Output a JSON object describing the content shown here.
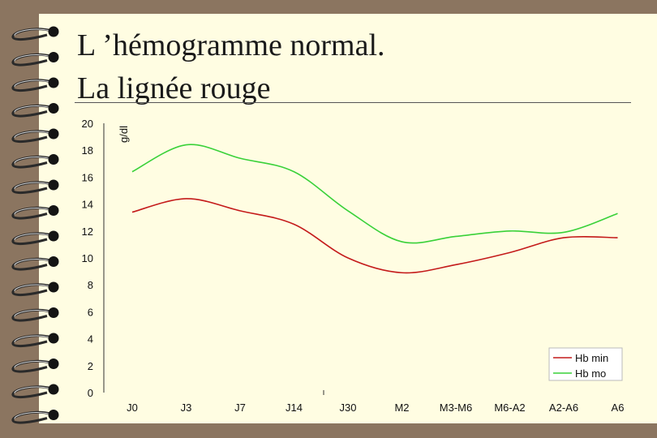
{
  "slide": {
    "title_line1": "L ’hémogramme normal.",
    "title_line2": "La lignée rouge"
  },
  "colors": {
    "background": "#8b7560",
    "slide": "#fffde2",
    "hb_min": "#c41a1a",
    "hb_mo": "#39d139"
  },
  "chart_data": {
    "type": "line",
    "ylabel": "g/dl",
    "xlabel": "",
    "ylim": [
      0,
      20
    ],
    "yticks": [
      "0",
      "2",
      "4",
      "6",
      "8",
      "10",
      "12",
      "14",
      "16",
      "18",
      "20"
    ],
    "categories": [
      "J0",
      "J3",
      "J7",
      "J14",
      "J30",
      "M2",
      "M3-M6",
      "M6-A2",
      "A2-A6",
      "A6"
    ],
    "grid": false,
    "legend_position": "bottom-right",
    "series": [
      {
        "name": "Hb min",
        "color": "#c41a1a",
        "values": [
          13.4,
          14.4,
          13.5,
          12.5,
          10.0,
          8.9,
          9.5,
          10.4,
          11.5,
          11.5
        ]
      },
      {
        "name": "Hb mo",
        "color": "#39d139",
        "values": [
          16.4,
          18.4,
          17.4,
          16.4,
          13.5,
          11.2,
          11.6,
          12.0,
          11.9,
          13.3
        ]
      }
    ]
  }
}
